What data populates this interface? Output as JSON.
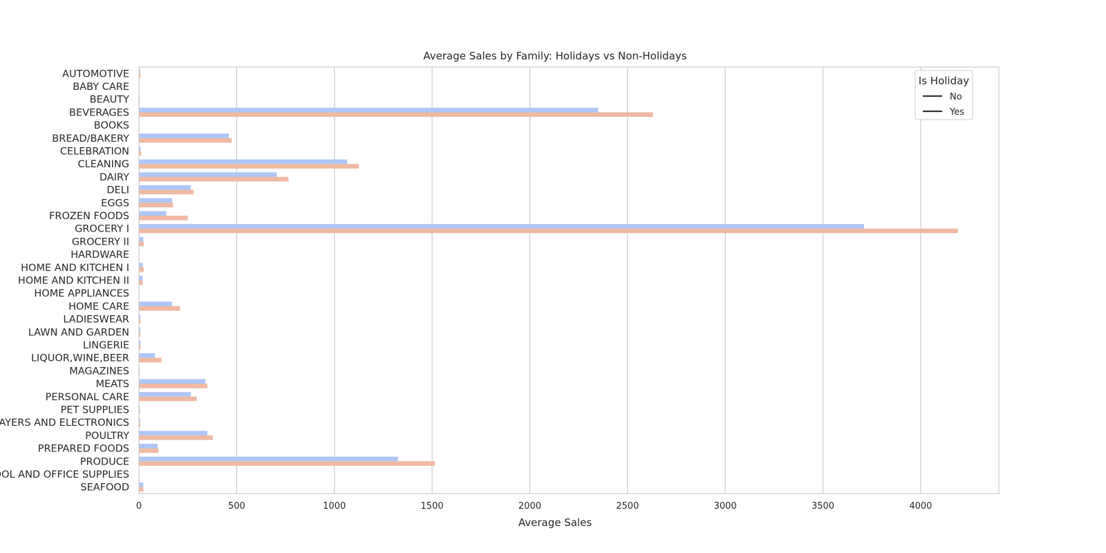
{
  "chart_data": {
    "type": "bar",
    "orientation": "horizontal",
    "title": "Average Sales by Family: Holidays vs Non-Holidays",
    "xlabel": "Average Sales",
    "ylabel": "",
    "xlim": [
      0,
      4400
    ],
    "xticks": [
      0,
      500,
      1000,
      1500,
      2000,
      2500,
      3000,
      3500,
      4000
    ],
    "grid": true,
    "legend": {
      "title": "Is Holiday",
      "placement": "top-right",
      "entries": [
        "No",
        "Yes"
      ]
    },
    "categories": [
      "AUTOMOTIVE",
      "BABY CARE",
      "BEAUTY",
      "BEVERAGES",
      "BOOKS",
      "BREAD/BAKERY",
      "CELEBRATION",
      "CLEANING",
      "DAIRY",
      "DELI",
      "EGGS",
      "FROZEN FOODS",
      "GROCERY I",
      "GROCERY II",
      "HARDWARE",
      "HOME AND KITCHEN I",
      "HOME AND KITCHEN II",
      "HOME APPLIANCES",
      "HOME CARE",
      "LADIESWEAR",
      "LAWN AND GARDEN",
      "LINGERIE",
      "LIQUOR,WINE,BEER",
      "MAGAZINES",
      "MEATS",
      "PERSONAL CARE",
      "PET SUPPLIES",
      "PLAYERS AND ELECTRONICS",
      "POULTRY",
      "PREPARED FOODS",
      "PRODUCE",
      "SCHOOL AND OFFICE SUPPLIES",
      "SEAFOOD"
    ],
    "series": [
      {
        "name": "No",
        "color": "#aec7f7",
        "values": [
          6,
          0.1,
          3,
          2350,
          0.1,
          460,
          8,
          1065,
          705,
          265,
          170,
          140,
          3710,
          22,
          1,
          20,
          18,
          0.5,
          170,
          7,
          6,
          7,
          82,
          3,
          340,
          265,
          4,
          6,
          350,
          95,
          1325,
          2,
          22
        ]
      },
      {
        "name": "Yes",
        "color": "#f0b9a1",
        "values": [
          8,
          0.2,
          4,
          2630,
          0.2,
          475,
          12,
          1125,
          765,
          280,
          175,
          250,
          4190,
          24,
          2,
          25,
          19,
          0.8,
          210,
          8,
          7,
          8,
          115,
          4,
          350,
          295,
          5,
          7,
          378,
          100,
          1515,
          3,
          23
        ]
      }
    ]
  }
}
